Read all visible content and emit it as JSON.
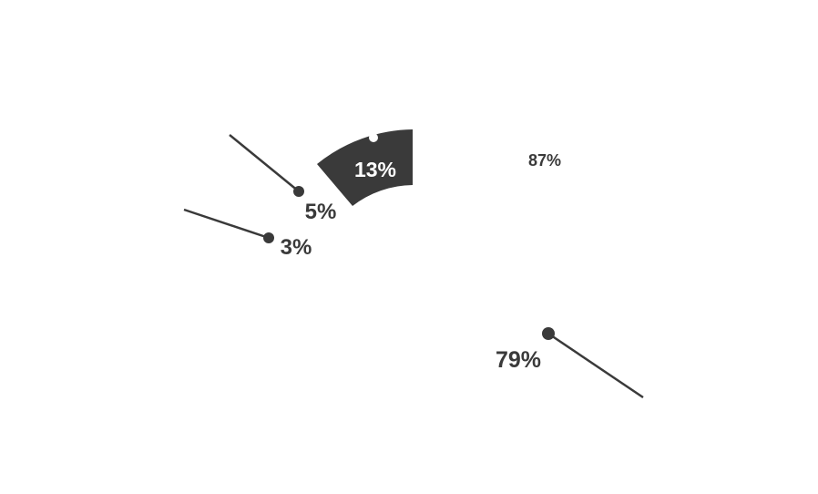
{
  "colors": {
    "dark": "#3a3a3a",
    "white": "#ffffff",
    "background": "#ffffff"
  },
  "chart_data": {
    "type": "pie",
    "title": "",
    "legend": "none",
    "series": [
      {
        "values": [
          87,
          13
        ],
        "labels": [
          "87%",
          "13%"
        ]
      },
      {
        "values": [
          79,
          5,
          3
        ],
        "labels": [
          "79%",
          "5%",
          "3%"
        ]
      }
    ]
  }
}
